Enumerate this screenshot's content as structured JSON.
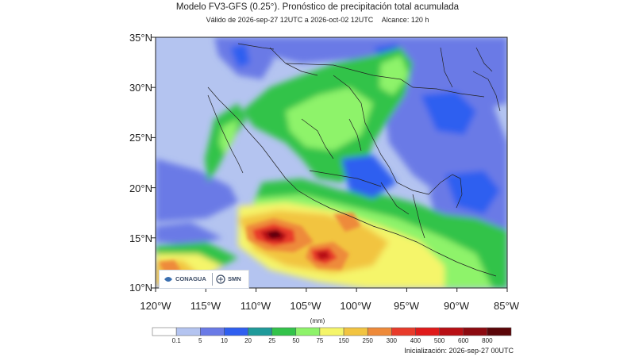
{
  "header": {
    "title": "Modelo FV3-GFS (0.25°). Pronóstico de precipitación total acumulada",
    "validity": "Válido de 2026-sep-27 12UTC a 2026-oct-02 12UTC",
    "range": "Alcance: 120 h"
  },
  "map": {
    "region": "Mexico",
    "lon_range": [
      -120,
      -85
    ],
    "lat_range": [
      10,
      35
    ],
    "lat_labels": [
      "35°N",
      "30°N",
      "25°N",
      "20°N",
      "15°N",
      "10°N"
    ],
    "lon_labels": [
      "120°W",
      "115°W",
      "110°W",
      "105°W",
      "100°W",
      "95°W",
      "90°W",
      "85°W"
    ]
  },
  "colorbar": {
    "unit": "(mm)",
    "levels": [
      "0.1",
      "5",
      "10",
      "20",
      "25",
      "50",
      "75",
      "150",
      "250",
      "300",
      "400",
      "500",
      "600",
      "800"
    ],
    "colors": [
      "#ffffff",
      "#b4c4f0",
      "#6a7ae6",
      "#2f5ff0",
      "#1f9a9a",
      "#33c34a",
      "#8ef36a",
      "#f5f56a",
      "#f2c441",
      "#ee8a3a",
      "#e83b2a",
      "#e01a1a",
      "#b80f14",
      "#8c0a10",
      "#5a0508"
    ]
  },
  "footer": {
    "initialization": "Inicialización: 2026-sep-27 00UTC"
  },
  "logos": {
    "left": "CONAGUA",
    "right": "SMN"
  }
}
